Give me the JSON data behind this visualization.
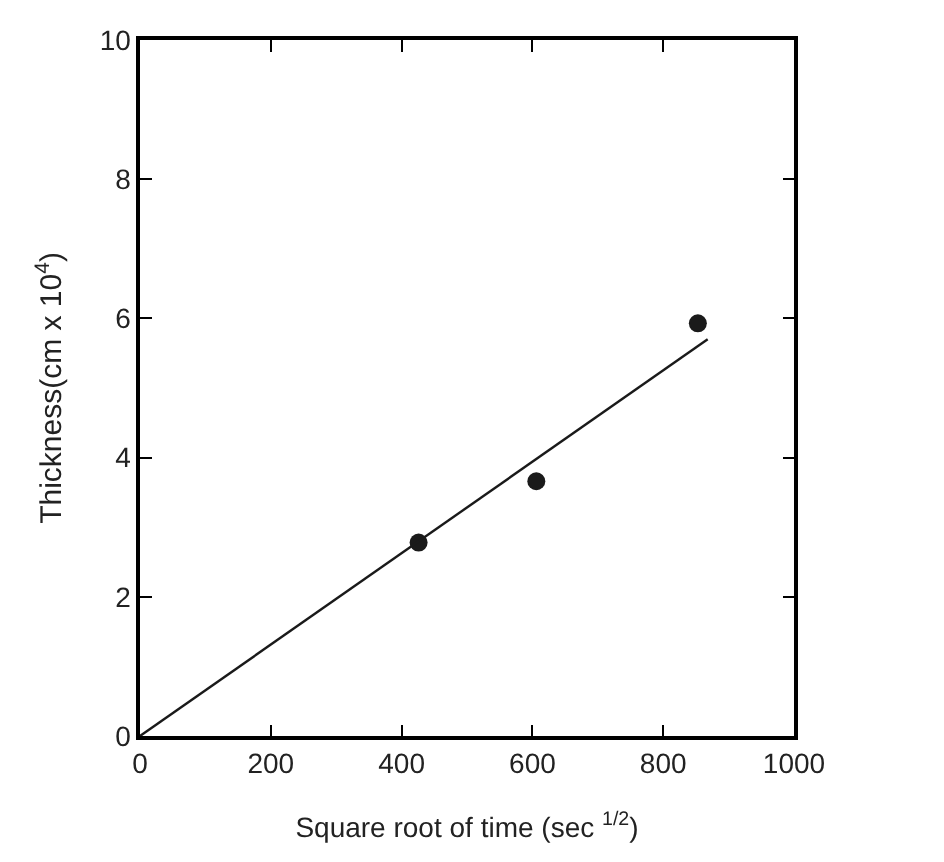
{
  "chart_data": {
    "type": "scatter",
    "xlabel": "Square root of time (sec $^{1/2}$)",
    "ylabel": "Thickness(cm x 10$^{4}$)",
    "xlim": [
      0,
      1000
    ],
    "ylim": [
      0,
      10
    ],
    "xticks": [
      0,
      200,
      400,
      600,
      800,
      1000
    ],
    "yticks": [
      0,
      2,
      4,
      6,
      8,
      10
    ],
    "series": [
      {
        "marker": "circle",
        "color": "#1a1a1a",
        "x": [
          426,
          606,
          853
        ],
        "values": [
          2.78,
          3.66,
          5.93
        ]
      },
      {
        "type": "line",
        "marker": "none",
        "line_style": "solid",
        "color": "#1a1a1a",
        "x": [
          0,
          868
        ],
        "values": [
          0,
          5.7
        ]
      }
    ]
  }
}
